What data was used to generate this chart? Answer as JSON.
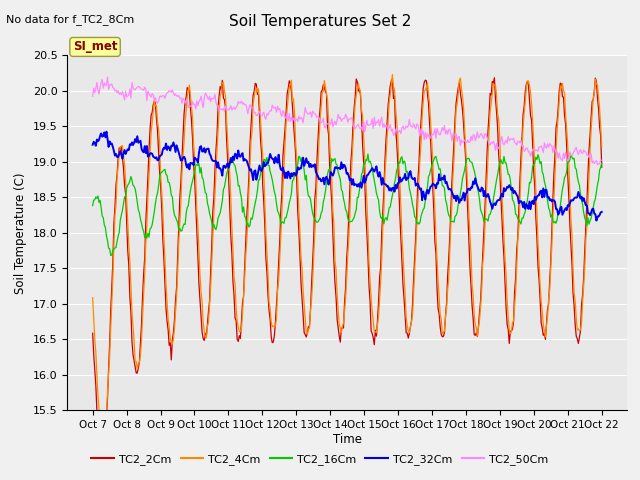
{
  "title": "Soil Temperatures Set 2",
  "subtitle": "No data for f_TC2_8Cm",
  "xlabel": "Time",
  "ylabel": "Soil Temperature (C)",
  "ylim": [
    15.5,
    20.5
  ],
  "yticks": [
    15.5,
    16.0,
    16.5,
    17.0,
    17.5,
    18.0,
    18.5,
    19.0,
    19.5,
    20.0,
    20.5
  ],
  "xtick_labels": [
    "Oct 7",
    "Oct 8",
    "Oct 9",
    "Oct 10",
    "Oct 11",
    "Oct 12",
    "Oct 13",
    "Oct 14",
    "Oct 15",
    "Oct 16",
    "Oct 17",
    "Oct 18",
    "Oct 19",
    "Oct 20",
    "Oct 21",
    "Oct 22"
  ],
  "colors": {
    "TC2_2Cm": "#cc0000",
    "TC2_4Cm": "#ff8800",
    "TC2_16Cm": "#00cc00",
    "TC2_32Cm": "#0000ee",
    "TC2_50Cm": "#ff88ff"
  },
  "fig_bg_color": "#f0f0f0",
  "plot_bg_color": "#e8e8e8",
  "si_met_box_color": "#ffff99",
  "si_met_text_color": "#880000",
  "annotation": "SI_met",
  "grid_color": "#ffffff",
  "n_points": 480
}
